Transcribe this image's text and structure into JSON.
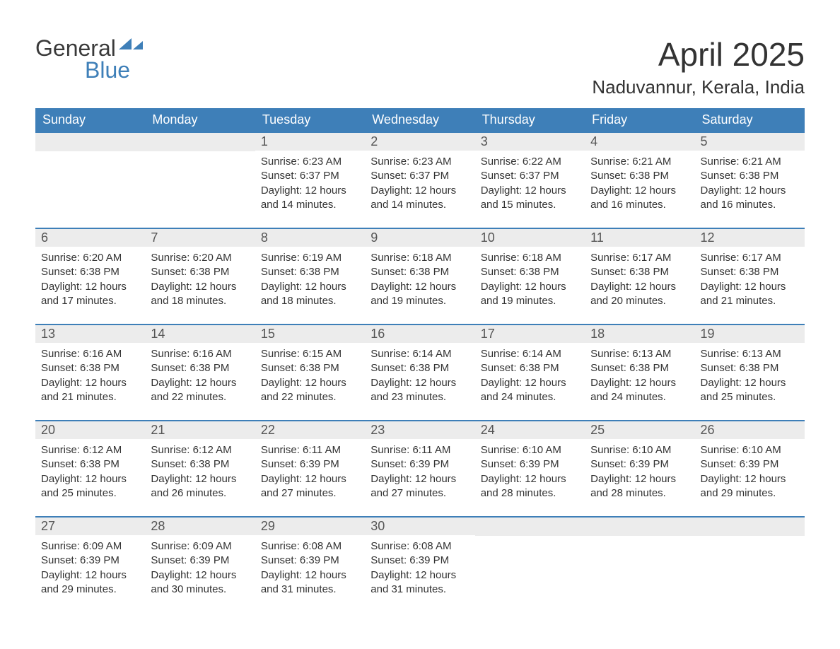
{
  "logo": {
    "word1": "General",
    "word2": "Blue",
    "shape_color": "#3e7fb8",
    "text_color_general": "#3a3a3a",
    "text_color_blue": "#3e7fb8"
  },
  "title": "April 2025",
  "location": "Naduvannur, Kerala, India",
  "colors": {
    "header_bg": "#3e7fb8",
    "header_text": "#ffffff",
    "daynum_bg": "#ececec",
    "daynum_text": "#555555",
    "body_text": "#333333",
    "row_border": "#3e7fb8",
    "page_bg": "#ffffff"
  },
  "fonts": {
    "title_size_pt": 34,
    "location_size_pt": 20,
    "weekday_size_pt": 14,
    "daynum_size_pt": 14,
    "body_size_pt": 11
  },
  "weekdays": [
    "Sunday",
    "Monday",
    "Tuesday",
    "Wednesday",
    "Thursday",
    "Friday",
    "Saturday"
  ],
  "weeks": [
    [
      {
        "day": "",
        "sunrise": "",
        "sunset": "",
        "daylight": ""
      },
      {
        "day": "",
        "sunrise": "",
        "sunset": "",
        "daylight": ""
      },
      {
        "day": "1",
        "sunrise": "Sunrise: 6:23 AM",
        "sunset": "Sunset: 6:37 PM",
        "daylight": "Daylight: 12 hours and 14 minutes."
      },
      {
        "day": "2",
        "sunrise": "Sunrise: 6:23 AM",
        "sunset": "Sunset: 6:37 PM",
        "daylight": "Daylight: 12 hours and 14 minutes."
      },
      {
        "day": "3",
        "sunrise": "Sunrise: 6:22 AM",
        "sunset": "Sunset: 6:37 PM",
        "daylight": "Daylight: 12 hours and 15 minutes."
      },
      {
        "day": "4",
        "sunrise": "Sunrise: 6:21 AM",
        "sunset": "Sunset: 6:38 PM",
        "daylight": "Daylight: 12 hours and 16 minutes."
      },
      {
        "day": "5",
        "sunrise": "Sunrise: 6:21 AM",
        "sunset": "Sunset: 6:38 PM",
        "daylight": "Daylight: 12 hours and 16 minutes."
      }
    ],
    [
      {
        "day": "6",
        "sunrise": "Sunrise: 6:20 AM",
        "sunset": "Sunset: 6:38 PM",
        "daylight": "Daylight: 12 hours and 17 minutes."
      },
      {
        "day": "7",
        "sunrise": "Sunrise: 6:20 AM",
        "sunset": "Sunset: 6:38 PM",
        "daylight": "Daylight: 12 hours and 18 minutes."
      },
      {
        "day": "8",
        "sunrise": "Sunrise: 6:19 AM",
        "sunset": "Sunset: 6:38 PM",
        "daylight": "Daylight: 12 hours and 18 minutes."
      },
      {
        "day": "9",
        "sunrise": "Sunrise: 6:18 AM",
        "sunset": "Sunset: 6:38 PM",
        "daylight": "Daylight: 12 hours and 19 minutes."
      },
      {
        "day": "10",
        "sunrise": "Sunrise: 6:18 AM",
        "sunset": "Sunset: 6:38 PM",
        "daylight": "Daylight: 12 hours and 19 minutes."
      },
      {
        "day": "11",
        "sunrise": "Sunrise: 6:17 AM",
        "sunset": "Sunset: 6:38 PM",
        "daylight": "Daylight: 12 hours and 20 minutes."
      },
      {
        "day": "12",
        "sunrise": "Sunrise: 6:17 AM",
        "sunset": "Sunset: 6:38 PM",
        "daylight": "Daylight: 12 hours and 21 minutes."
      }
    ],
    [
      {
        "day": "13",
        "sunrise": "Sunrise: 6:16 AM",
        "sunset": "Sunset: 6:38 PM",
        "daylight": "Daylight: 12 hours and 21 minutes."
      },
      {
        "day": "14",
        "sunrise": "Sunrise: 6:16 AM",
        "sunset": "Sunset: 6:38 PM",
        "daylight": "Daylight: 12 hours and 22 minutes."
      },
      {
        "day": "15",
        "sunrise": "Sunrise: 6:15 AM",
        "sunset": "Sunset: 6:38 PM",
        "daylight": "Daylight: 12 hours and 22 minutes."
      },
      {
        "day": "16",
        "sunrise": "Sunrise: 6:14 AM",
        "sunset": "Sunset: 6:38 PM",
        "daylight": "Daylight: 12 hours and 23 minutes."
      },
      {
        "day": "17",
        "sunrise": "Sunrise: 6:14 AM",
        "sunset": "Sunset: 6:38 PM",
        "daylight": "Daylight: 12 hours and 24 minutes."
      },
      {
        "day": "18",
        "sunrise": "Sunrise: 6:13 AM",
        "sunset": "Sunset: 6:38 PM",
        "daylight": "Daylight: 12 hours and 24 minutes."
      },
      {
        "day": "19",
        "sunrise": "Sunrise: 6:13 AM",
        "sunset": "Sunset: 6:38 PM",
        "daylight": "Daylight: 12 hours and 25 minutes."
      }
    ],
    [
      {
        "day": "20",
        "sunrise": "Sunrise: 6:12 AM",
        "sunset": "Sunset: 6:38 PM",
        "daylight": "Daylight: 12 hours and 25 minutes."
      },
      {
        "day": "21",
        "sunrise": "Sunrise: 6:12 AM",
        "sunset": "Sunset: 6:38 PM",
        "daylight": "Daylight: 12 hours and 26 minutes."
      },
      {
        "day": "22",
        "sunrise": "Sunrise: 6:11 AM",
        "sunset": "Sunset: 6:39 PM",
        "daylight": "Daylight: 12 hours and 27 minutes."
      },
      {
        "day": "23",
        "sunrise": "Sunrise: 6:11 AM",
        "sunset": "Sunset: 6:39 PM",
        "daylight": "Daylight: 12 hours and 27 minutes."
      },
      {
        "day": "24",
        "sunrise": "Sunrise: 6:10 AM",
        "sunset": "Sunset: 6:39 PM",
        "daylight": "Daylight: 12 hours and 28 minutes."
      },
      {
        "day": "25",
        "sunrise": "Sunrise: 6:10 AM",
        "sunset": "Sunset: 6:39 PM",
        "daylight": "Daylight: 12 hours and 28 minutes."
      },
      {
        "day": "26",
        "sunrise": "Sunrise: 6:10 AM",
        "sunset": "Sunset: 6:39 PM",
        "daylight": "Daylight: 12 hours and 29 minutes."
      }
    ],
    [
      {
        "day": "27",
        "sunrise": "Sunrise: 6:09 AM",
        "sunset": "Sunset: 6:39 PM",
        "daylight": "Daylight: 12 hours and 29 minutes."
      },
      {
        "day": "28",
        "sunrise": "Sunrise: 6:09 AM",
        "sunset": "Sunset: 6:39 PM",
        "daylight": "Daylight: 12 hours and 30 minutes."
      },
      {
        "day": "29",
        "sunrise": "Sunrise: 6:08 AM",
        "sunset": "Sunset: 6:39 PM",
        "daylight": "Daylight: 12 hours and 31 minutes."
      },
      {
        "day": "30",
        "sunrise": "Sunrise: 6:08 AM",
        "sunset": "Sunset: 6:39 PM",
        "daylight": "Daylight: 12 hours and 31 minutes."
      },
      {
        "day": "",
        "sunrise": "",
        "sunset": "",
        "daylight": ""
      },
      {
        "day": "",
        "sunrise": "",
        "sunset": "",
        "daylight": ""
      },
      {
        "day": "",
        "sunrise": "",
        "sunset": "",
        "daylight": ""
      }
    ]
  ]
}
